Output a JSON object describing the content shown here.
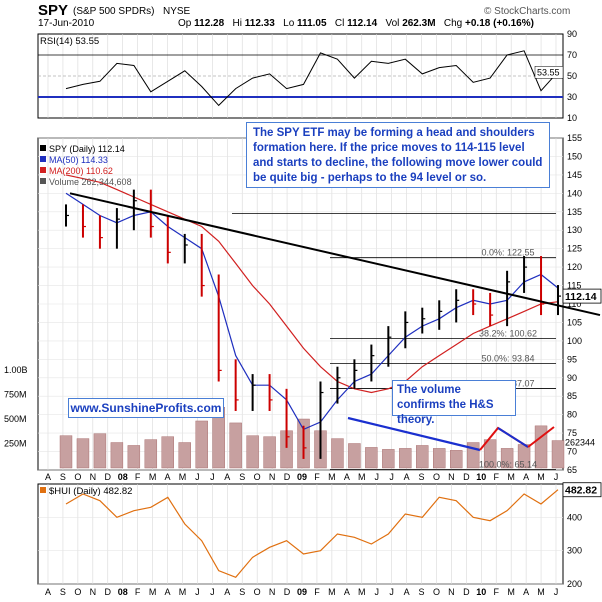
{
  "header": {
    "ticker": "SPY",
    "name": "(S&P 500 SPDRs)",
    "exchange": "NYSE",
    "date": "17-Jun-2010",
    "open_label": "Op",
    "open": "112.28",
    "high_label": "Hi",
    "high": "112.33",
    "low_label": "Lo",
    "low": "111.05",
    "close_label": "Cl",
    "close": "112.14",
    "volume_label": "Vol",
    "volume": "262.3M",
    "change_label": "Chg",
    "change": "+0.18 (+0.16%)",
    "watermark": "© StockCharts.com"
  },
  "colors": {
    "price_up": "#000000",
    "price_down": "#cc0000",
    "ma50": "#1f2fbf",
    "ma200": "#d12020",
    "trendline": "#000000",
    "volume_trend": "#1a2fcf",
    "volume_up_trend": "#e01010",
    "hui_line": "#e07010",
    "volume_bar": "#c7a0a0",
    "axis": "#000000"
  },
  "legend": {
    "spy": "SPY (Daily) 112.14",
    "ma50": "MA(50) 114.33",
    "ma200": "MA(200) 110.62",
    "volume": "Volume 262,344,608"
  },
  "annotations": {
    "hs_text": "The SPY ETF may be forming a head and shoulders formation here. If the price moves to 114-115 level and starts to decline, the following move lower could be quite big - perhaps to the 94 level or so.",
    "volume_text": "The volume confirms the H&S theory.",
    "site": "www.SunshineProfits.com"
  },
  "chart_data": [
    {
      "type": "line",
      "title": "RSI(14) 53.55",
      "last_value": 53.55,
      "ylim": [
        10,
        90
      ],
      "yticks": [
        10,
        30,
        50,
        70,
        90
      ],
      "reference_lines": [
        30,
        70
      ],
      "x": [
        "2008-01",
        "2008-02",
        "2008-03",
        "2008-04",
        "2008-05",
        "2008-06",
        "2008-07",
        "2008-08",
        "2008-09",
        "2008-10",
        "2008-11",
        "2008-12",
        "2009-01",
        "2009-02",
        "2009-03",
        "2009-04",
        "2009-05",
        "2009-06",
        "2009-07",
        "2009-08",
        "2009-09",
        "2009-10",
        "2009-11",
        "2009-12",
        "2010-01",
        "2010-02",
        "2010-03",
        "2010-04",
        "2010-05",
        "2010-06"
      ],
      "values": [
        38,
        42,
        45,
        62,
        60,
        35,
        45,
        55,
        40,
        22,
        38,
        48,
        52,
        38,
        42,
        72,
        66,
        48,
        64,
        62,
        66,
        52,
        58,
        60,
        44,
        48,
        70,
        74,
        36,
        54
      ]
    },
    {
      "type": "bar",
      "title": "SPY (Daily) 112.14",
      "ylim": [
        65,
        155
      ],
      "yticks": [
        65,
        70,
        75,
        80,
        85,
        90,
        95,
        100,
        105,
        110,
        115,
        120,
        125,
        130,
        135,
        140,
        145,
        150,
        155
      ],
      "last_value": 112.14,
      "fib_levels": [
        {
          "label": "0.0%: 122.55",
          "value": 122.55
        },
        {
          "label": "38.2%: 100.62",
          "value": 100.62
        },
        {
          "label": "50.0%: 93.84",
          "value": 93.84
        },
        {
          "label": "61.8%: 87.07",
          "value": 87.07
        },
        {
          "label": "100.0%: 65.14",
          "value": 65.14
        }
      ],
      "resistance_level": 134.5,
      "x": [
        "2008-01",
        "2008-02",
        "2008-03",
        "2008-04",
        "2008-05",
        "2008-06",
        "2008-07",
        "2008-08",
        "2008-09",
        "2008-10",
        "2008-11",
        "2008-12",
        "2009-01",
        "2009-02",
        "2009-03",
        "2009-04",
        "2009-05",
        "2009-06",
        "2009-07",
        "2009-08",
        "2009-09",
        "2009-10",
        "2009-11",
        "2009-12",
        "2010-01",
        "2010-02",
        "2010-03",
        "2010-04",
        "2010-05",
        "2010-06"
      ],
      "series": [
        {
          "name": "SPY (Daily) 112.14",
          "values": [
            134,
            131,
            128,
            133,
            138,
            131,
            124,
            126,
            115,
            92,
            84,
            88,
            84,
            74,
            71,
            86,
            90,
            92,
            96,
            101,
            105,
            106,
            108,
            111,
            110,
            107,
            116,
            120,
            110,
            112.14
          ]
        },
        {
          "name": "MA(50) 114.33",
          "values": [
            140,
            137,
            134,
            132,
            134,
            135,
            131,
            128,
            125,
            112,
            96,
            88,
            88,
            84,
            76,
            78,
            84,
            89,
            91,
            96,
            101,
            104,
            106,
            109,
            111,
            110,
            111,
            116,
            118,
            114.33
          ]
        },
        {
          "name": "MA(200) 110.62",
          "values": [
            145,
            144,
            143,
            141,
            139,
            137,
            135,
            133,
            131,
            127,
            121,
            115,
            110,
            104,
            98,
            93,
            89,
            87,
            86,
            87,
            89,
            93,
            96,
            99,
            102,
            104,
            106,
            108,
            110,
            110.62
          ]
        }
      ],
      "trendline": {
        "start": [
          "2007-12",
          140
        ],
        "end": [
          "2010-06",
          107
        ]
      }
    },
    {
      "type": "bar",
      "title": "Volume 262,344,608",
      "yticks_labels": [
        "250M",
        "500M",
        "750M",
        "1.00B"
      ],
      "yticks": [
        250,
        500,
        750,
        1000
      ],
      "last_value_label": "262344",
      "x": [
        "2008-01",
        "2008-02",
        "2008-03",
        "2008-04",
        "2008-05",
        "2008-06",
        "2008-07",
        "2008-08",
        "2008-09",
        "2008-10",
        "2008-11",
        "2008-12",
        "2009-01",
        "2009-02",
        "2009-03",
        "2009-04",
        "2009-05",
        "2009-06",
        "2009-07",
        "2009-08",
        "2009-09",
        "2009-10",
        "2009-11",
        "2009-12",
        "2010-01",
        "2010-02",
        "2010-03",
        "2010-04",
        "2010-05",
        "2010-06"
      ],
      "values": [
        330,
        300,
        350,
        260,
        230,
        290,
        320,
        260,
        480,
        620,
        460,
        330,
        320,
        380,
        500,
        380,
        300,
        250,
        210,
        190,
        200,
        230,
        200,
        180,
        260,
        290,
        200,
        240,
        430,
        280
      ]
    },
    {
      "type": "line",
      "title": "$HUI (Daily) 482.82",
      "ylim": [
        200,
        500
      ],
      "yticks": [
        200,
        300,
        400
      ],
      "last_value": 482.82,
      "x": [
        "2008-01",
        "2008-02",
        "2008-03",
        "2008-04",
        "2008-05",
        "2008-06",
        "2008-07",
        "2008-08",
        "2008-09",
        "2008-10",
        "2008-11",
        "2008-12",
        "2009-01",
        "2009-02",
        "2009-03",
        "2009-04",
        "2009-05",
        "2009-06",
        "2009-07",
        "2009-08",
        "2009-09",
        "2009-10",
        "2009-11",
        "2009-12",
        "2010-01",
        "2010-02",
        "2010-03",
        "2010-04",
        "2010-05",
        "2010-06"
      ],
      "values": [
        440,
        470,
        450,
        400,
        420,
        430,
        460,
        380,
        330,
        240,
        220,
        280,
        310,
        330,
        290,
        300,
        350,
        340,
        320,
        350,
        410,
        400,
        460,
        450,
        400,
        390,
        420,
        470,
        440,
        482.82
      ]
    }
  ],
  "xaxis": {
    "months": [
      "A",
      "S",
      "O",
      "N",
      "D",
      "08",
      "F",
      "M",
      "A",
      "M",
      "J",
      "J",
      "A",
      "S",
      "O",
      "N",
      "D",
      "09",
      "F",
      "M",
      "A",
      "M",
      "J",
      "J",
      "A",
      "S",
      "O",
      "N",
      "D",
      "10",
      "F",
      "M",
      "A",
      "M",
      "J"
    ]
  }
}
